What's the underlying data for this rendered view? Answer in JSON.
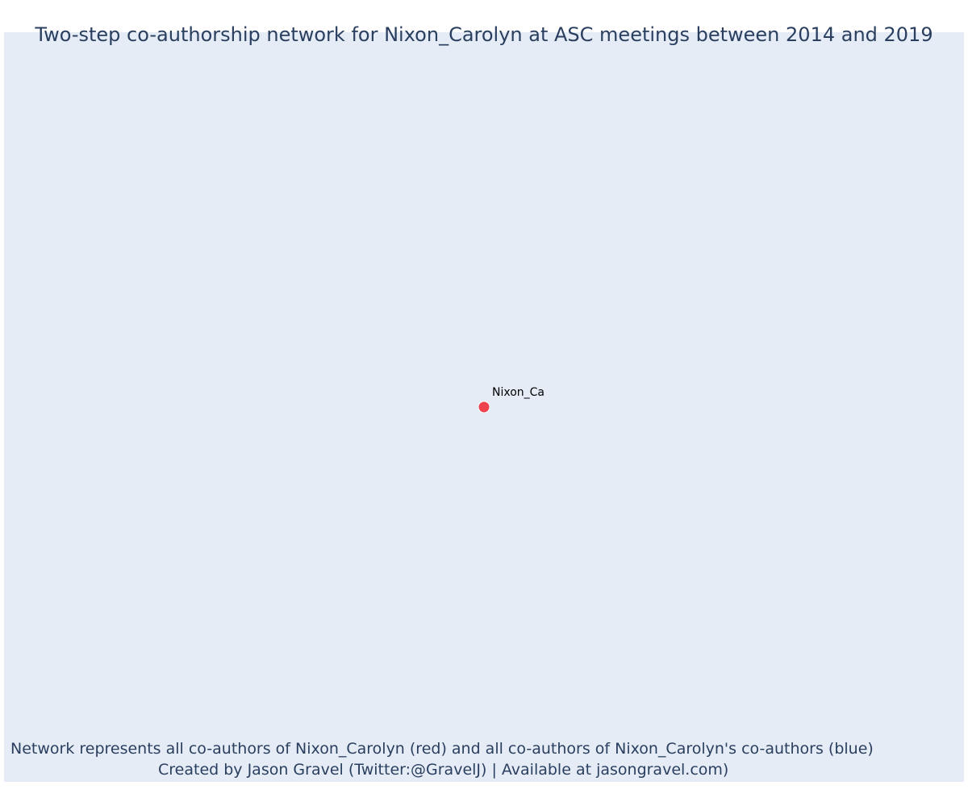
{
  "chart_data": {
    "type": "scatter",
    "title": "Two-step co-authorship network for Nixon_Carolyn at ASC meetings between 2014 and 2019",
    "xlabel": "",
    "ylabel": "",
    "grid": false,
    "axes_visible": false,
    "x_range": [
      -1,
      1
    ],
    "y_range": [
      -1,
      1
    ],
    "nodes": [
      {
        "label": "Nixon_Ca",
        "x": 0,
        "y": 0,
        "color": "#ef444e",
        "role": "ego"
      }
    ],
    "edges": [],
    "annotations": [
      "Network represents all co-authors of Nixon_Carolyn (red) and all co-authors of Nixon_Carolyn's co-authors (blue)",
      "Created by Jason Gravel (Twitter:@GravelJ) | Available at jasongravel.com)"
    ]
  },
  "colors": {
    "plot_background": "#e5ecf6",
    "text": "#2a3f5f",
    "ego_node": "#ef444e",
    "node_border": "#ffffff"
  }
}
